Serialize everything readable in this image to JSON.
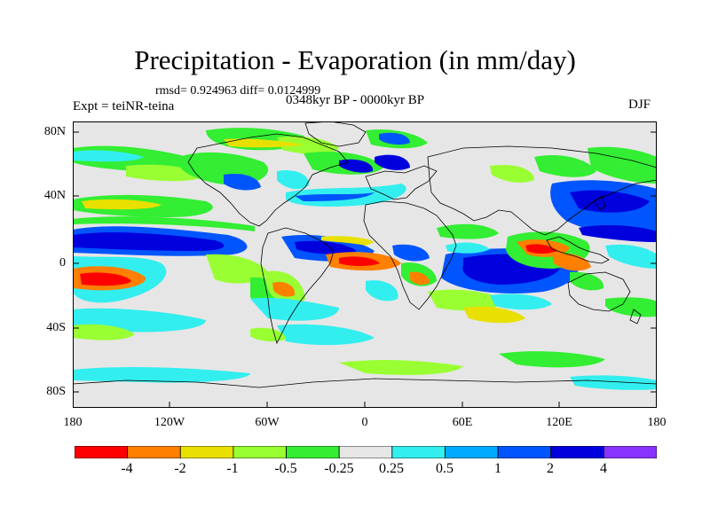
{
  "header": {
    "title": "Precipitation - Evaporation (in mm/day)",
    "stats": "rmsd= 0.924963 diff= 0.0124999",
    "experiment": "Expt = teiNR-teina",
    "period": "0348kyr BP - 0000kyr BP",
    "season": "DJF"
  },
  "axes": {
    "lat_labels": [
      "80N",
      "40N",
      "0",
      "40S",
      "80S"
    ],
    "lon_labels": [
      "180",
      "120W",
      "60W",
      "0",
      "60E",
      "120E",
      "180"
    ]
  },
  "colorbar": {
    "labels": [
      "-4",
      "-2",
      "-1",
      "-0.5",
      "-0.25",
      "0.25",
      "0.5",
      "1",
      "2",
      "4"
    ],
    "colors": [
      "#ff0000",
      "#ff8000",
      "#e8e000",
      "#99ff33",
      "#33ee33",
      "#e6e6e6",
      "#33eeee",
      "#00aaff",
      "#0055ff",
      "#0000dd",
      "#8833ff"
    ]
  },
  "map": {
    "background_color": "#e6e6e6",
    "lon_range": [
      -180,
      180
    ],
    "lat_range": [
      -90,
      90
    ]
  }
}
